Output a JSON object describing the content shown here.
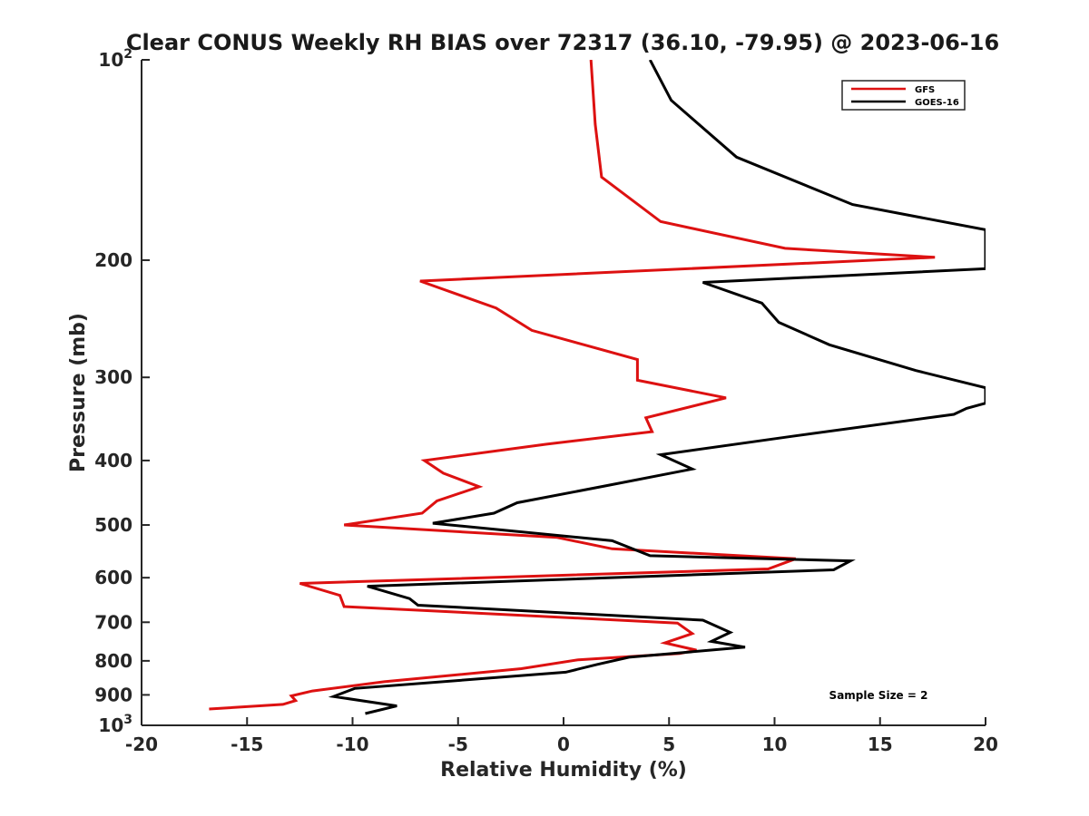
{
  "chart_data": {
    "type": "line",
    "title": "Clear CONUS Weekly RH BIAS over 72317 (36.10, -79.95) @ 2023-06-16",
    "xlabel": "Relative Humidity (%)",
    "ylabel": "Pressure (mb)",
    "xlim": [
      -20,
      20
    ],
    "ylim": [
      1000,
      100
    ],
    "y_scale": "log",
    "y_reversed": true,
    "x_ticks": [
      -20,
      -15,
      -10,
      -5,
      0,
      5,
      10,
      15,
      20
    ],
    "x_tick_labels": [
      "-20",
      "-15",
      "-10",
      "-5",
      "0",
      "5",
      "10",
      "15",
      "20"
    ],
    "y_ticks": [
      {
        "value": 100,
        "base": "10",
        "exp": "2"
      },
      {
        "value": 200,
        "label": "200"
      },
      {
        "value": 300,
        "label": "300"
      },
      {
        "value": 400,
        "label": "400"
      },
      {
        "value": 500,
        "label": "500"
      },
      {
        "value": 600,
        "label": "600"
      },
      {
        "value": 700,
        "label": "700"
      },
      {
        "value": 800,
        "label": "800"
      },
      {
        "value": 900,
        "label": "900"
      },
      {
        "value": 1000,
        "base": "10",
        "exp": "3"
      }
    ],
    "grid": false,
    "legend_position": "top-right",
    "series": [
      {
        "name": "GFS",
        "color": "#dd1111",
        "points": [
          [
            1.3,
            100
          ],
          [
            1.5,
            125
          ],
          [
            1.8,
            150
          ],
          [
            4.6,
            175
          ],
          [
            10.5,
            192
          ],
          [
            17.6,
            198
          ],
          [
            -6.8,
            215
          ],
          [
            -3.2,
            236
          ],
          [
            -1.5,
            255
          ],
          [
            3.5,
            282
          ],
          [
            3.5,
            303
          ],
          [
            7.7,
            322
          ],
          [
            3.9,
            345
          ],
          [
            4.2,
            362
          ],
          [
            -0.8,
            378
          ],
          [
            -6.6,
            400
          ],
          [
            -5.7,
            418
          ],
          [
            -4.0,
            438
          ],
          [
            -6.0,
            460
          ],
          [
            -6.7,
            480
          ],
          [
            -10.4,
            500
          ],
          [
            -0.3,
            522
          ],
          [
            2.3,
            543
          ],
          [
            11.0,
            562
          ],
          [
            9.7,
            582
          ],
          [
            -12.5,
            612
          ],
          [
            -10.6,
            638
          ],
          [
            -10.4,
            663
          ],
          [
            5.4,
            702
          ],
          [
            6.1,
            728
          ],
          [
            4.8,
            752
          ],
          [
            6.3,
            771
          ],
          [
            5.5,
            780
          ],
          [
            0.7,
            797
          ],
          [
            -2.0,
            822
          ],
          [
            -8.5,
            860
          ],
          [
            -11.9,
            888
          ],
          [
            -12.9,
            903
          ],
          [
            -12.7,
            918
          ],
          [
            -13.3,
            930
          ],
          [
            -16.8,
            945
          ]
        ]
      },
      {
        "name": "GOES-16",
        "color": "#000000",
        "points": [
          [
            4.1,
            100
          ],
          [
            5.1,
            115
          ],
          [
            8.2,
            140
          ],
          [
            13.7,
            165
          ],
          [
            20.0,
            180
          ],
          [
            20.0,
            206
          ],
          [
            6.6,
            216
          ],
          [
            9.4,
            232
          ],
          [
            10.2,
            248
          ],
          [
            12.6,
            268
          ],
          [
            16.7,
            293
          ],
          [
            20.0,
            311
          ],
          [
            20.0,
            328
          ],
          [
            19.1,
            334
          ],
          [
            18.5,
            341
          ],
          [
            10.8,
            368
          ],
          [
            4.6,
            392
          ],
          [
            6.1,
            412
          ],
          [
            2.1,
            436
          ],
          [
            -2.2,
            463
          ],
          [
            -3.3,
            480
          ],
          [
            -6.2,
            497
          ],
          [
            2.3,
            528
          ],
          [
            4.1,
            556
          ],
          [
            13.6,
            566
          ],
          [
            12.8,
            584
          ],
          [
            -9.3,
            618
          ],
          [
            -7.3,
            645
          ],
          [
            -6.9,
            660
          ],
          [
            6.6,
            695
          ],
          [
            7.9,
            725
          ],
          [
            7.0,
            748
          ],
          [
            8.6,
            763
          ],
          [
            3.1,
            790
          ],
          [
            1.6,
            810
          ],
          [
            0.1,
            832
          ],
          [
            -9.9,
            880
          ],
          [
            -10.9,
            905
          ],
          [
            -7.9,
            935
          ],
          [
            -9.4,
            960
          ]
        ]
      }
    ],
    "annotation": "Sample Size = 2"
  }
}
